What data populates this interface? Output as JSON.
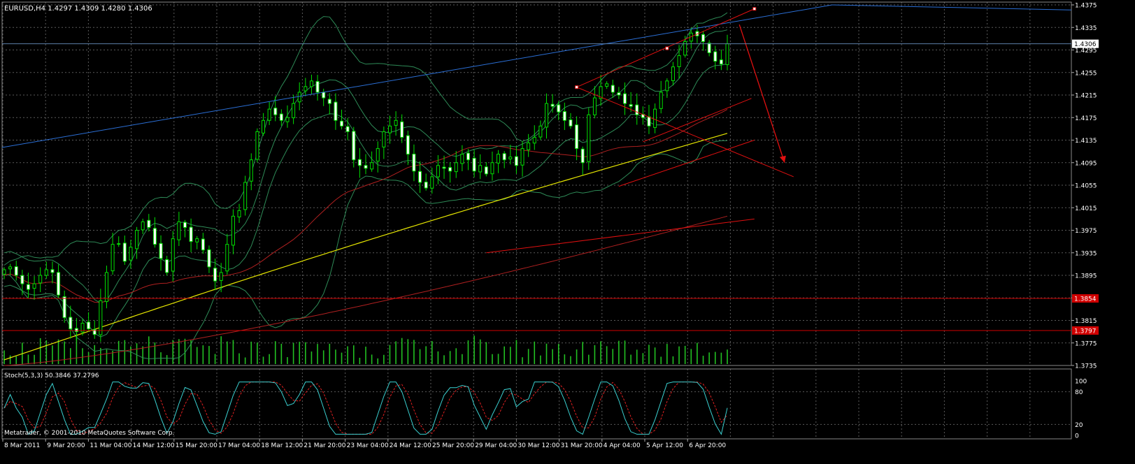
{
  "header": {
    "symbol_line": "EURUSD,H4  1.4297 1.4309 1.4280 1.4306"
  },
  "footer": {
    "copyright": "Metatrader, © 2001-2010 MetaQuotes Software Corp."
  },
  "colors": {
    "background": "#000000",
    "grid": "#5a5a5a",
    "axis_text": "#ffffff",
    "candle": "#00e000",
    "volume": "#22c022",
    "bollinger": "#2e8b57",
    "ma_red": "#b02020",
    "ma_yellow": "#e6e600",
    "trend_blue": "#2b6fd6",
    "pattern_red": "#e01010",
    "hline_current": "#5b7fa8",
    "hline_red": "#d00000",
    "stoch_main": "#3ad0d0",
    "stoch_signal": "#e02020"
  },
  "chart_data": [
    {
      "type": "candlestick",
      "title": "EURUSD,H4  1.4297 1.4309 1.4280 1.4306",
      "ohlc": {
        "open": 1.4297,
        "high": 1.4309,
        "low": 1.428,
        "close": 1.4306
      },
      "y_ticks": [
        "1.4375",
        "1.4335",
        "1.4295",
        "1.4255",
        "1.4215",
        "1.4175",
        "1.4135",
        "1.4095",
        "1.4055",
        "1.4015",
        "1.3975",
        "1.3935",
        "1.3895",
        "1.3855",
        "1.3815",
        "1.3775",
        "1.3735"
      ],
      "ylim": [
        1.3735,
        1.4375
      ],
      "x_ticks": [
        "8 Mar 2011",
        "9 Mar 20:00",
        "11 Mar 04:00",
        "14 Mar 12:00",
        "15 Mar 20:00",
        "17 Mar 04:00",
        "18 Mar 12:00",
        "21 Mar 20:00",
        "23 Mar 04:00",
        "24 Mar 12:00",
        "25 Mar 20:00",
        "29 Mar 04:00",
        "30 Mar 12:00",
        "31 Mar 20:00",
        "4 Apr 04:00",
        "5 Apr 12:00",
        "6 Apr 20:00"
      ],
      "price_labels": [
        {
          "value": 1.4306,
          "text": "1.4306",
          "style": "current"
        },
        {
          "value": 1.3854,
          "text": "1.3854",
          "style": "red"
        },
        {
          "value": 1.3797,
          "text": "1.3797",
          "style": "red"
        }
      ],
      "close_series": [
        1.3905,
        1.391,
        1.3895,
        1.388,
        1.387,
        1.388,
        1.3895,
        1.3905,
        1.39,
        1.386,
        1.382,
        1.38,
        1.3795,
        1.381,
        1.38,
        1.379,
        1.385,
        1.39,
        1.395,
        1.395,
        1.392,
        1.3945,
        1.3975,
        1.399,
        1.398,
        1.395,
        1.3925,
        1.39,
        1.396,
        1.399,
        1.398,
        1.3955,
        1.396,
        1.394,
        1.391,
        1.3885,
        1.39,
        1.395,
        1.4,
        1.401,
        1.406,
        1.41,
        1.415,
        1.417,
        1.419,
        1.418,
        1.417,
        1.4175,
        1.42,
        1.422,
        1.423,
        1.424,
        1.422,
        1.421,
        1.42,
        1.417,
        1.416,
        1.415,
        1.41,
        1.409,
        1.4085,
        1.4095,
        1.412,
        1.415,
        1.416,
        1.417,
        1.414,
        1.411,
        1.408,
        1.406,
        1.405,
        1.407,
        1.409,
        1.4085,
        1.408,
        1.4095,
        1.411,
        1.41,
        1.408,
        1.409,
        1.4075,
        1.4095,
        1.411,
        1.41,
        1.4105,
        1.409,
        1.412,
        1.413,
        1.414,
        1.416,
        1.42,
        1.4195,
        1.4185,
        1.417,
        1.416,
        1.412,
        1.4095,
        1.418,
        1.421,
        1.423,
        1.4235,
        1.422,
        1.4215,
        1.42,
        1.4195,
        1.418,
        1.4175,
        1.416,
        1.419,
        1.422,
        1.424,
        1.4265,
        1.4285,
        1.431,
        1.4325,
        1.432,
        1.431,
        1.429,
        1.4275,
        1.427,
        1.4306
      ],
      "stochastic": {
        "label": "Stoch(5,3,3) 50.3846 37.2796",
        "main": 50.3846,
        "signal": 37.2796,
        "ylim": [
          0,
          100
        ],
        "levels": [
          20,
          80
        ],
        "y_ticks": [
          "100",
          "80",
          "20",
          "0"
        ]
      }
    }
  ]
}
